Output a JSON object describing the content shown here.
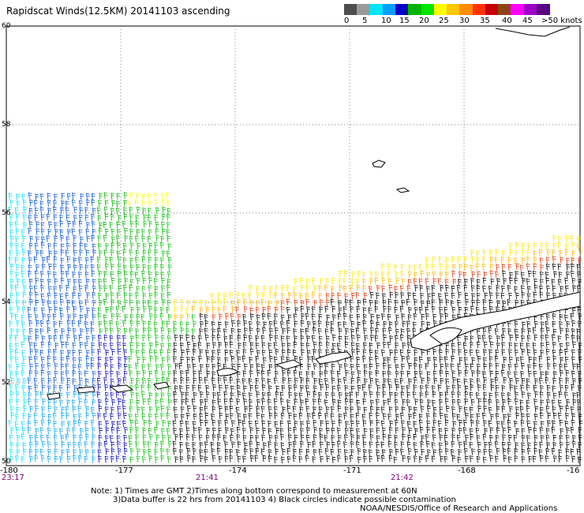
{
  "title": "Rapidscat Winds(12.5KM) 20141103 ascending",
  "scale": {
    "labels": [
      "0",
      "5",
      "10",
      "15",
      "20",
      "25",
      "30",
      "35",
      "40",
      "45",
      ">50 knots"
    ],
    "colors": [
      "#4d4d4d",
      "#9a9a9a",
      "#00e5ff",
      "#00a0ff",
      "#0000c8",
      "#00b400",
      "#00e600",
      "#ffff00",
      "#ffc800",
      "#ff8c00",
      "#ff3300",
      "#c80000",
      "#8b4513",
      "#ff00ff",
      "#a000c8",
      "#5a0082"
    ]
  },
  "axes": {
    "lat_labels": [
      "60",
      "58",
      "56",
      "54",
      "52",
      "50"
    ],
    "lon_labels": [
      "-180",
      "-177",
      "-174",
      "-171",
      "-168",
      "-16"
    ],
    "time_labels": [
      "23:17",
      "21:41",
      "21:42"
    ]
  },
  "notes": {
    "line1": "Note: 1) Times are GMT 2)Times along bottom correspond to measurement at 60N",
    "line2": "3)Data buffer is 22 hrs from 20141103 4) Black circles indicate possible contamination",
    "line3": "NOAA/NESDIS/Office of Research and Applications"
  }
}
